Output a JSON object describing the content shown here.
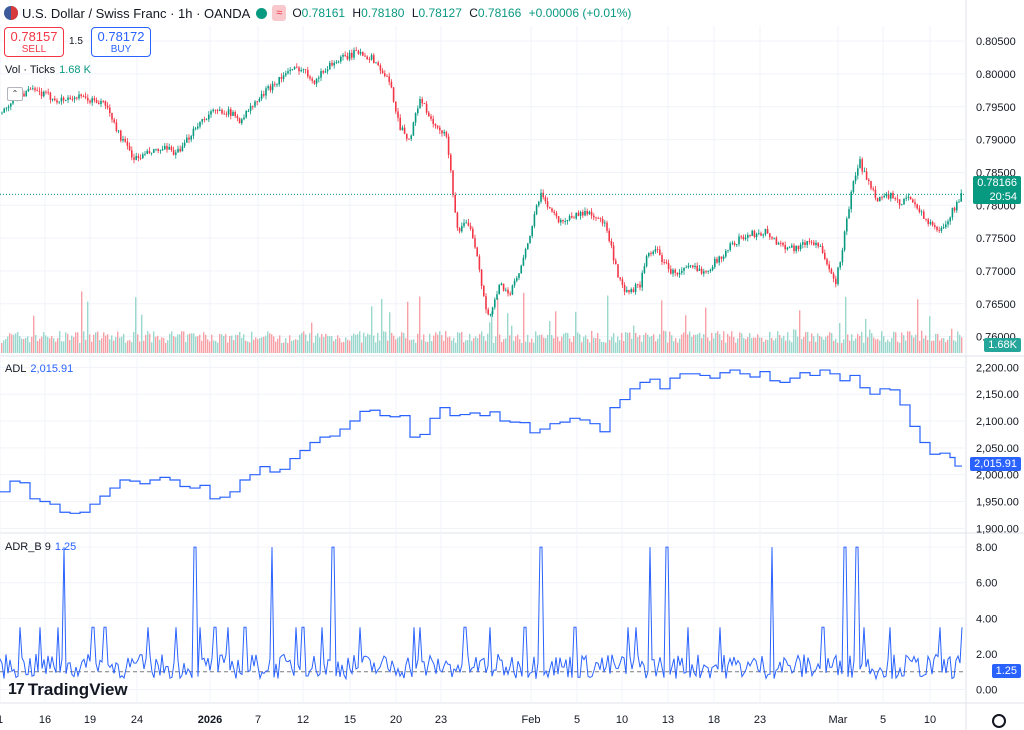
{
  "header": {
    "symbol": "U.S. Dollar / Swiss Franc · 1h · OANDA",
    "ohlc": {
      "o_label": "O",
      "o": "0.78161",
      "h_label": "H",
      "h": "0.78180",
      "l_label": "L",
      "l": "0.78127",
      "c_label": "C",
      "c": "0.78166",
      "change": "+0.00006 (+0.01%)"
    }
  },
  "trade": {
    "sell_price": "0.78157",
    "sell_label": "SELL",
    "spread": "1.5",
    "buy_price": "0.78172",
    "buy_label": "BUY"
  },
  "volume_legend": {
    "name": "Vol · Ticks",
    "value": "1.68 K"
  },
  "adl_legend": {
    "name": "ADL",
    "value": "2,015.91"
  },
  "adr_legend": {
    "name": "ADR_B 9",
    "value": "1.25"
  },
  "watermark": "TradingView",
  "colors": {
    "up": "#089981",
    "down": "#f23645",
    "indicator": "#2962ff",
    "price_tag": "#089981",
    "volume_tag": "#26a69a"
  },
  "chart_data": [
    {
      "type": "candlestick",
      "title": "U.S. Dollar / Swiss Franc · 1h · OANDA",
      "y_ticks": [
        "0.80500",
        "0.80000",
        "0.79500",
        "0.79000",
        "0.78500",
        "0.78000",
        "0.77500",
        "0.77000",
        "0.76500",
        "0.76000"
      ],
      "ylim": [
        0.7575,
        0.807
      ],
      "x_ticks": [
        "1",
        "16",
        "19",
        "24",
        "2026",
        "7",
        "12",
        "15",
        "20",
        "23",
        "Feb",
        "5",
        "10",
        "13",
        "18",
        "23",
        "Mar",
        "5",
        "10"
      ],
      "price_path": [
        [
          0,
          0.794
        ],
        [
          15,
          0.7965
        ],
        [
          30,
          0.7975
        ],
        [
          45,
          0.7968
        ],
        [
          60,
          0.796
        ],
        [
          75,
          0.7965
        ],
        [
          90,
          0.796
        ],
        [
          105,
          0.7955
        ],
        [
          120,
          0.7905
        ],
        [
          135,
          0.787
        ],
        [
          150,
          0.788
        ],
        [
          165,
          0.7885
        ],
        [
          180,
          0.788
        ],
        [
          195,
          0.792
        ],
        [
          210,
          0.794
        ],
        [
          225,
          0.7945
        ],
        [
          240,
          0.793
        ],
        [
          255,
          0.7955
        ],
        [
          270,
          0.798
        ],
        [
          285,
          0.8
        ],
        [
          300,
          0.801
        ],
        [
          315,
          0.799
        ],
        [
          330,
          0.8015
        ],
        [
          345,
          0.8025
        ],
        [
          360,
          0.8035
        ],
        [
          375,
          0.802
        ],
        [
          390,
          0.7985
        ],
        [
          400,
          0.792
        ],
        [
          410,
          0.79
        ],
        [
          420,
          0.7965
        ],
        [
          430,
          0.793
        ],
        [
          440,
          0.791
        ],
        [
          447,
          0.7905
        ],
        [
          452,
          0.783
        ],
        [
          458,
          0.776
        ],
        [
          465,
          0.777
        ],
        [
          472,
          0.776
        ],
        [
          478,
          0.772
        ],
        [
          484,
          0.7655
        ],
        [
          490,
          0.763
        ],
        [
          500,
          0.768
        ],
        [
          510,
          0.7665
        ],
        [
          520,
          0.77
        ],
        [
          528,
          0.774
        ],
        [
          535,
          0.779
        ],
        [
          542,
          0.7818
        ],
        [
          550,
          0.7795
        ],
        [
          560,
          0.7775
        ],
        [
          575,
          0.7785
        ],
        [
          590,
          0.779
        ],
        [
          605,
          0.777
        ],
        [
          612,
          0.773
        ],
        [
          618,
          0.769
        ],
        [
          625,
          0.7665
        ],
        [
          632,
          0.767
        ],
        [
          640,
          0.768
        ],
        [
          648,
          0.7725
        ],
        [
          655,
          0.7735
        ],
        [
          665,
          0.771
        ],
        [
          675,
          0.7695
        ],
        [
          690,
          0.7705
        ],
        [
          705,
          0.77
        ],
        [
          720,
          0.772
        ],
        [
          735,
          0.7745
        ],
        [
          750,
          0.7755
        ],
        [
          765,
          0.776
        ],
        [
          780,
          0.774
        ],
        [
          795,
          0.7735
        ],
        [
          810,
          0.7745
        ],
        [
          820,
          0.774
        ],
        [
          828,
          0.77
        ],
        [
          836,
          0.7685
        ],
        [
          842,
          0.773
        ],
        [
          848,
          0.779
        ],
        [
          854,
          0.784
        ],
        [
          860,
          0.7865
        ],
        [
          868,
          0.7835
        ],
        [
          878,
          0.781
        ],
        [
          890,
          0.7815
        ],
        [
          900,
          0.78
        ],
        [
          910,
          0.7815
        ],
        [
          920,
          0.779
        ],
        [
          930,
          0.777
        ],
        [
          940,
          0.776
        ],
        [
          950,
          0.7785
        ],
        [
          962,
          0.7816
        ]
      ],
      "last_price": "0.78166",
      "countdown": "20:54"
    },
    {
      "type": "bar",
      "title": "Vol · Ticks",
      "last_value": "1.68K"
    },
    {
      "type": "line",
      "title": "ADL",
      "y_ticks": [
        "2,200.00",
        "2,150.00",
        "2,100.00",
        "2,050.00",
        "2,000.00",
        "1,950.00",
        "1,900.00"
      ],
      "ylim": [
        1895,
        2210
      ],
      "points": [
        [
          0,
          1968
        ],
        [
          10,
          1988
        ],
        [
          20,
          1985
        ],
        [
          30,
          1955
        ],
        [
          40,
          1950
        ],
        [
          50,
          1945
        ],
        [
          60,
          1930
        ],
        [
          70,
          1928
        ],
        [
          80,
          1930
        ],
        [
          90,
          1945
        ],
        [
          100,
          1960
        ],
        [
          110,
          1975
        ],
        [
          120,
          1990
        ],
        [
          130,
          1988
        ],
        [
          140,
          1983
        ],
        [
          150,
          1990
        ],
        [
          160,
          1995
        ],
        [
          170,
          1990
        ],
        [
          180,
          1978
        ],
        [
          190,
          1975
        ],
        [
          200,
          1980
        ],
        [
          210,
          1955
        ],
        [
          220,
          1958
        ],
        [
          230,
          1968
        ],
        [
          240,
          1990
        ],
        [
          250,
          2000
        ],
        [
          260,
          2015
        ],
        [
          270,
          2005
        ],
        [
          280,
          2010
        ],
        [
          290,
          2030
        ],
        [
          300,
          2045
        ],
        [
          310,
          2060
        ],
        [
          320,
          2070
        ],
        [
          330,
          2072
        ],
        [
          340,
          2085
        ],
        [
          350,
          2100
        ],
        [
          360,
          2118
        ],
        [
          370,
          2120
        ],
        [
          380,
          2110
        ],
        [
          390,
          2108
        ],
        [
          400,
          2110
        ],
        [
          410,
          2070
        ],
        [
          420,
          2075
        ],
        [
          430,
          2105
        ],
        [
          440,
          2125
        ],
        [
          450,
          2110
        ],
        [
          460,
          2112
        ],
        [
          470,
          2115
        ],
        [
          480,
          2110
        ],
        [
          490,
          2117
        ],
        [
          500,
          2100
        ],
        [
          510,
          2098
        ],
        [
          520,
          2097
        ],
        [
          530,
          2078
        ],
        [
          540,
          2085
        ],
        [
          550,
          2095
        ],
        [
          560,
          2098
        ],
        [
          570,
          2105
        ],
        [
          580,
          2102
        ],
        [
          590,
          2095
        ],
        [
          600,
          2080
        ],
        [
          610,
          2125
        ],
        [
          620,
          2140
        ],
        [
          630,
          2160
        ],
        [
          640,
          2172
        ],
        [
          650,
          2178
        ],
        [
          660,
          2160
        ],
        [
          670,
          2180
        ],
        [
          680,
          2188
        ],
        [
          690,
          2188
        ],
        [
          700,
          2185
        ],
        [
          710,
          2180
        ],
        [
          720,
          2190
        ],
        [
          730,
          2195
        ],
        [
          740,
          2188
        ],
        [
          750,
          2182
        ],
        [
          760,
          2192
        ],
        [
          770,
          2175
        ],
        [
          780,
          2172
        ],
        [
          790,
          2180
        ],
        [
          800,
          2190
        ],
        [
          810,
          2185
        ],
        [
          820,
          2195
        ],
        [
          830,
          2188
        ],
        [
          840,
          2175
        ],
        [
          850,
          2185
        ],
        [
          860,
          2162
        ],
        [
          870,
          2150
        ],
        [
          880,
          2160
        ],
        [
          890,
          2158
        ],
        [
          900,
          2130
        ],
        [
          910,
          2090
        ],
        [
          920,
          2060
        ],
        [
          930,
          2038
        ],
        [
          940,
          2040
        ],
        [
          950,
          2032
        ],
        [
          955,
          2016
        ],
        [
          962,
          2016
        ]
      ],
      "last_value": "2,015.91"
    },
    {
      "type": "line",
      "title": "ADR_B 9",
      "y_ticks": [
        "8.00",
        "6.00",
        "4.00",
        "2.00",
        "0.00"
      ],
      "ylim": [
        -0.7,
        8.4
      ],
      "reference_line": 1.0,
      "last_value": "1.25"
    }
  ]
}
